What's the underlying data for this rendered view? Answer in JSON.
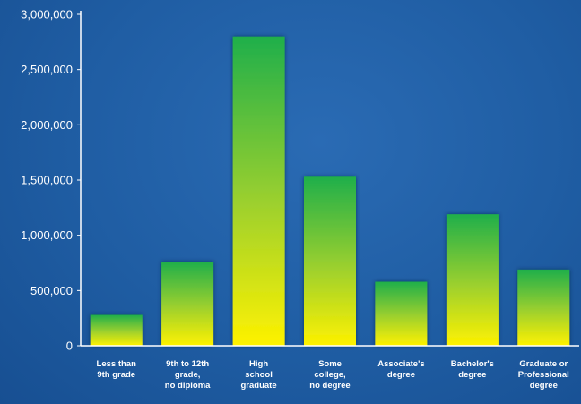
{
  "chart_data": {
    "type": "bar",
    "title": "",
    "xlabel": "",
    "ylabel": "",
    "categories": [
      [
        "Less than",
        "9th grade"
      ],
      [
        "9th to 12th",
        "grade,",
        "no diploma"
      ],
      [
        "High",
        "school",
        "graduate"
      ],
      [
        "Some",
        "college,",
        "no degree"
      ],
      [
        "Associate's",
        "degree"
      ],
      [
        "Bachelor's",
        "degree"
      ],
      [
        "Graduate or",
        "Professional",
        "degree"
      ]
    ],
    "values": [
      280000,
      760000,
      2800000,
      1530000,
      580000,
      1190000,
      690000
    ],
    "ylim": [
      0,
      3000000
    ],
    "yticks": [
      0,
      500000,
      1000000,
      1500000,
      2000000,
      2500000,
      3000000
    ],
    "ytick_labels": [
      "0",
      "500,000",
      "1,000,000",
      "1,500,000",
      "2,000,000",
      "2,500,000",
      "3,000,000"
    ],
    "grid": false,
    "legend": "none",
    "colors": {
      "background": "#1f5da3",
      "bar_top": "#1faf4a",
      "bar_bottom": "#fff200",
      "axis": "#ffffff",
      "text": "#ffffff"
    }
  }
}
